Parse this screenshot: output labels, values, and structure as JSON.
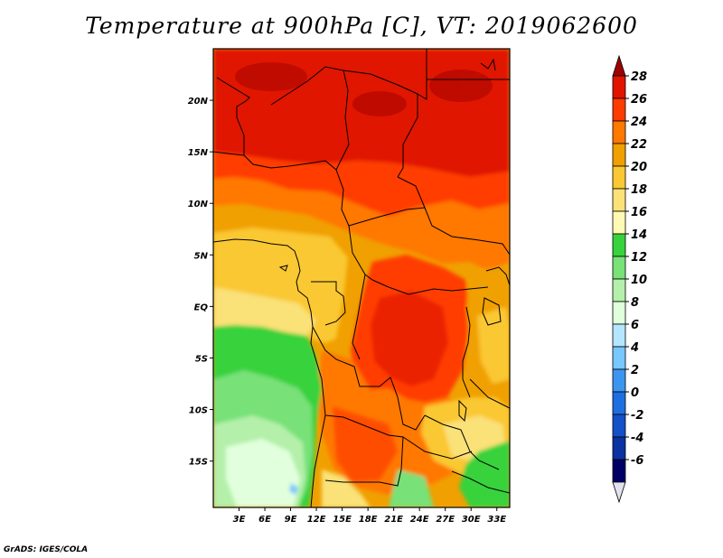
{
  "title": "Temperature at 900hPa [C], VT: 2019062600",
  "credit": "GrADS: IGES/COLA",
  "map": {
    "lon_range": [
      0,
      34.5
    ],
    "lat_range": [
      -19.5,
      25
    ],
    "lon_ticks": [
      "3E",
      "6E",
      "9E",
      "12E",
      "15E",
      "18E",
      "21E",
      "24E",
      "27E",
      "30E",
      "33E"
    ],
    "lat_ticks": [
      "20N",
      "15N",
      "10N",
      "5N",
      "EQ",
      "5S",
      "10S",
      "15S"
    ]
  },
  "colorbar": {
    "labels": [
      "28",
      "26",
      "24",
      "22",
      "20",
      "18",
      "16",
      "14",
      "12",
      "10",
      "8",
      "6",
      "4",
      "2",
      "0",
      "-2",
      "-4",
      "-6"
    ],
    "colors": [
      "#a00000",
      "#e01400",
      "#ff3c00",
      "#ff7800",
      "#f0a000",
      "#fac832",
      "#fae178",
      "#fffab4",
      "#37d23c",
      "#78e178",
      "#b4f0aa",
      "#e1ffdc",
      "#b4e6ff",
      "#78c8ff",
      "#3c96f0",
      "#1e6ee1",
      "#1450c8",
      "#0a32a0",
      "#000064",
      "#e1e1f0"
    ]
  }
}
